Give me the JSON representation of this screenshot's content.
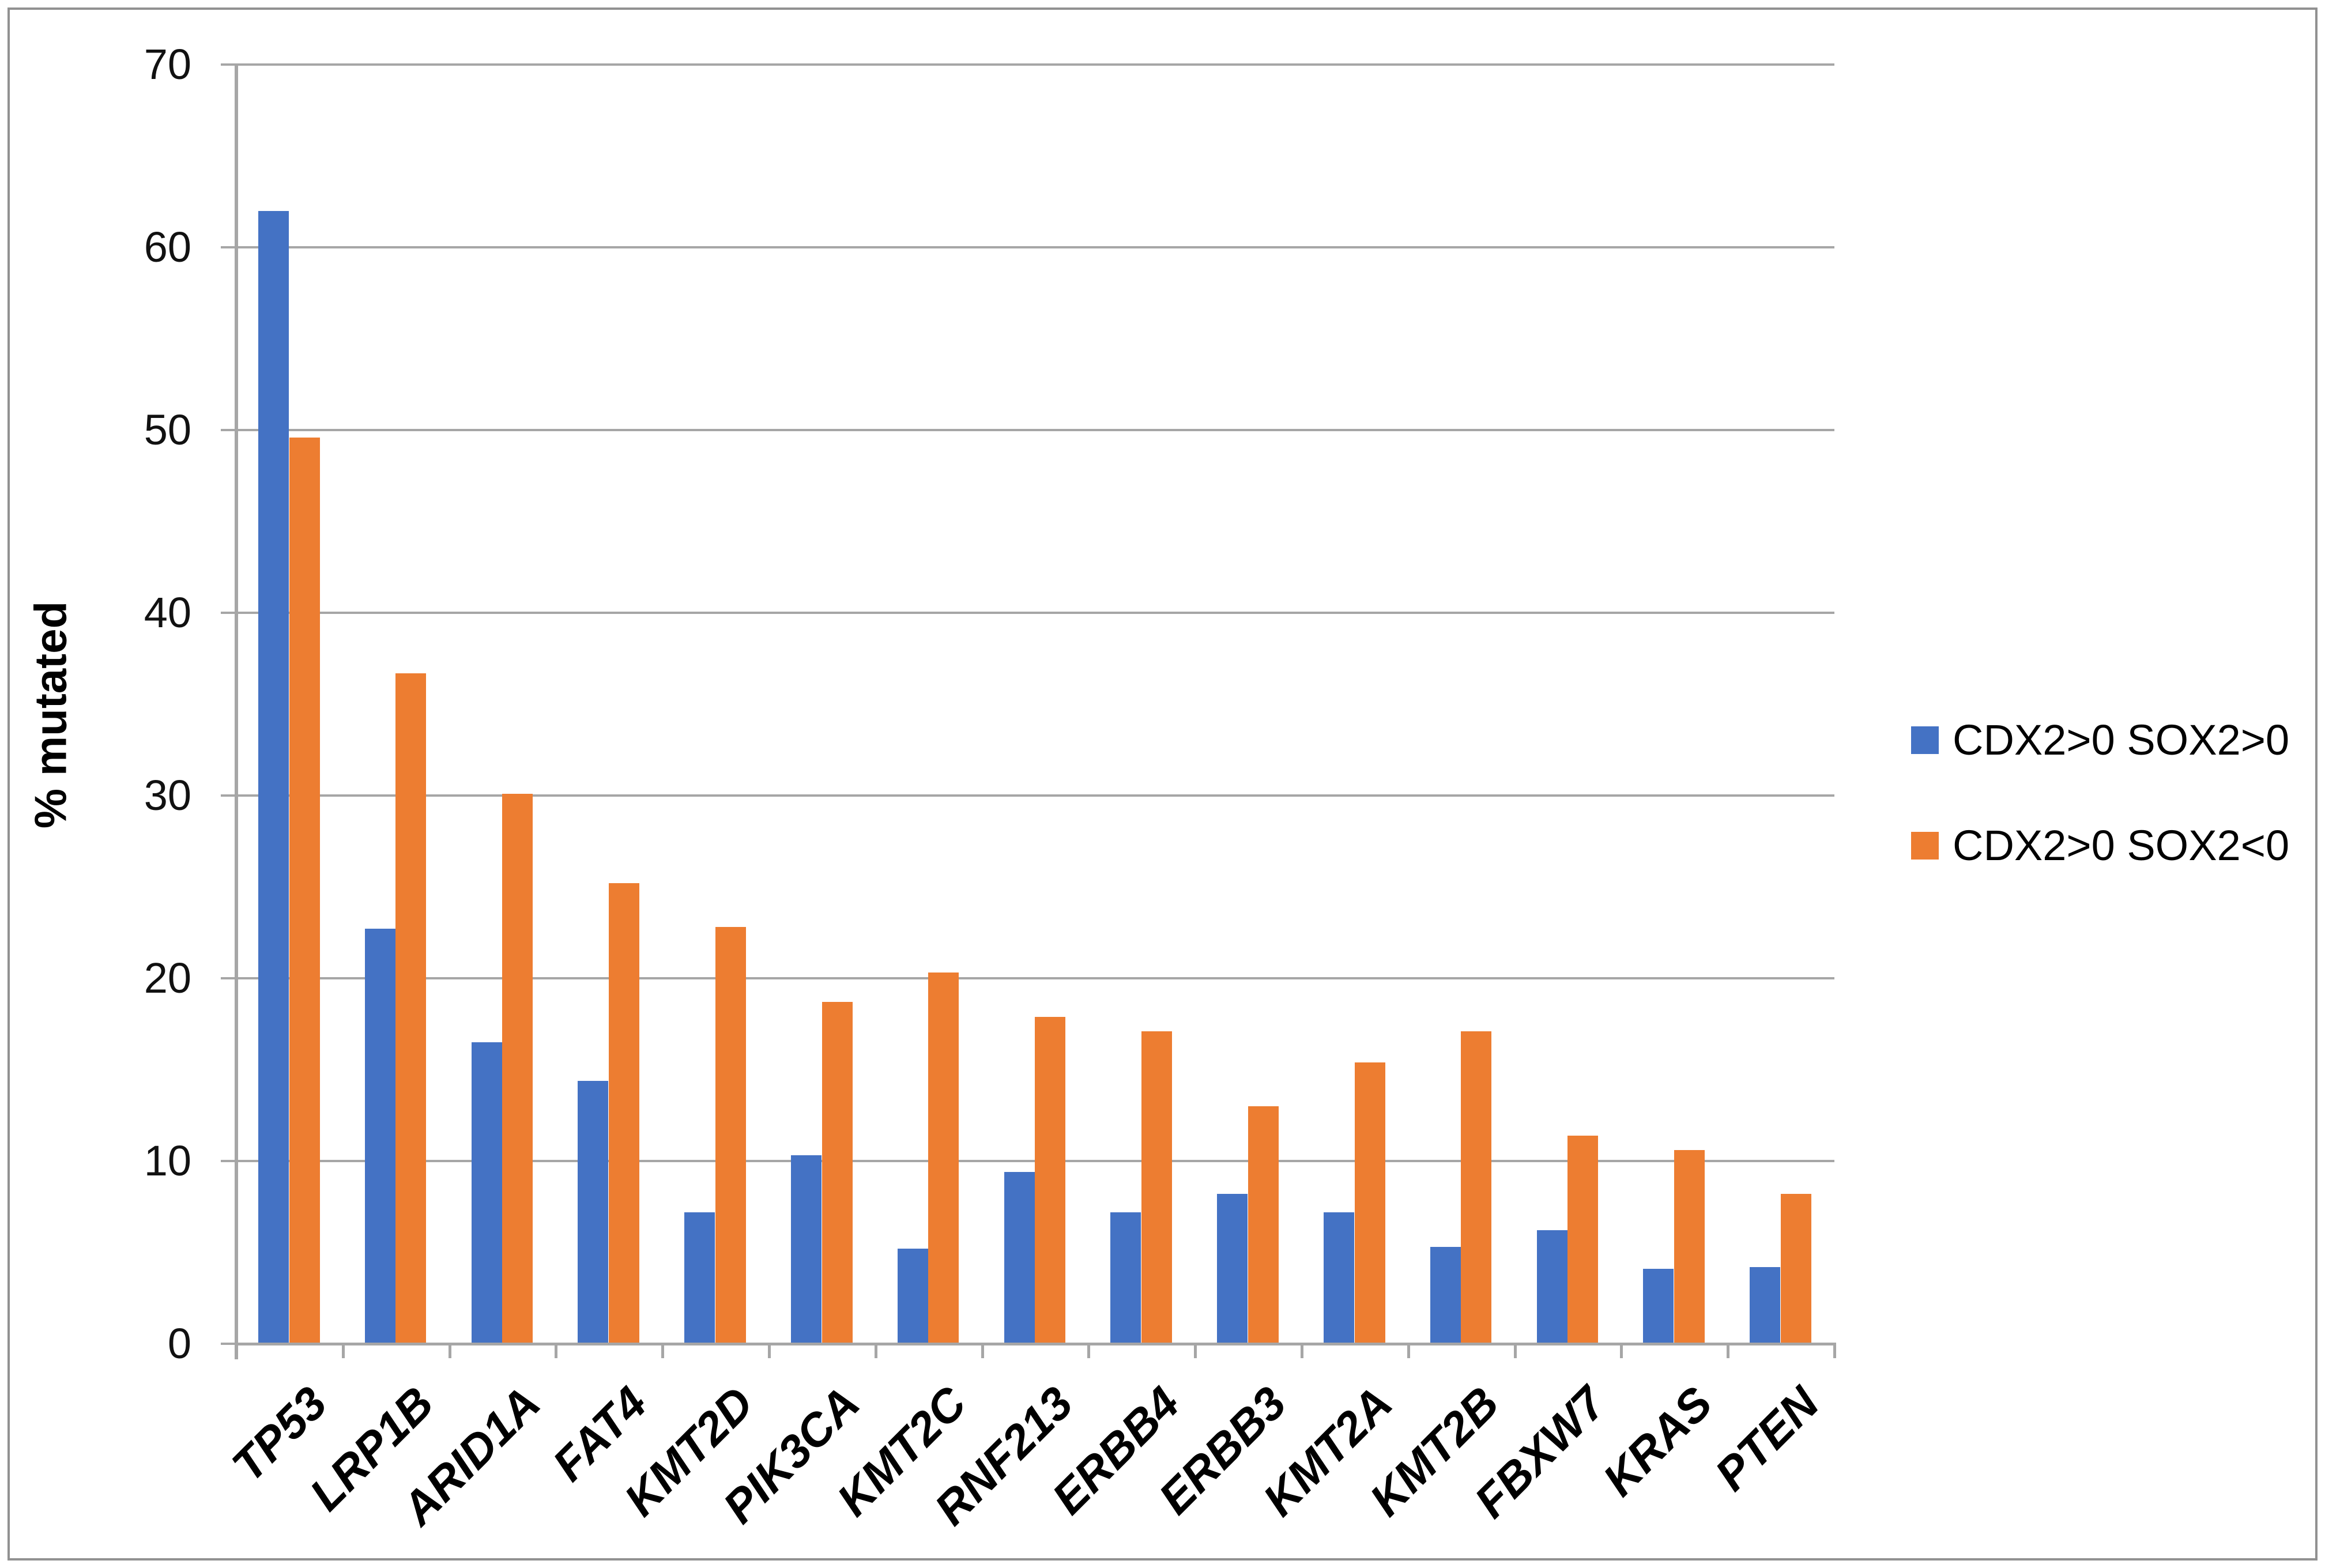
{
  "chart_data": {
    "type": "bar",
    "title": "",
    "xlabel": "",
    "ylabel": "% mutated",
    "ylim": [
      0,
      70
    ],
    "ytick_step": 10,
    "ytick_labels": [
      "0",
      "10",
      "20",
      "30",
      "40",
      "50",
      "60",
      "70"
    ],
    "grid": "horizontal",
    "legend_position": "right",
    "categories": [
      "TP53",
      "LRP1B",
      "ARID1A",
      "FAT4",
      "KMT2D",
      "PIK3CA",
      "KMT2C",
      "RNF213",
      "ERBB4",
      "ERBB3",
      "KMT2A",
      "KMT2B",
      "FBXW7",
      "KRAS",
      "PTEN"
    ],
    "series": [
      {
        "name": "CDX2>0 SOX2>0",
        "color": "#4472C4",
        "values": [
          62.0,
          22.7,
          16.5,
          14.4,
          7.2,
          10.3,
          5.2,
          9.4,
          7.2,
          8.2,
          7.2,
          5.3,
          6.2,
          4.1,
          4.2
        ]
      },
      {
        "name": "CDX2>0 SOX2<0",
        "color": "#ED7D31",
        "values": [
          49.6,
          36.7,
          30.1,
          25.2,
          22.8,
          18.7,
          20.3,
          17.9,
          17.1,
          13.0,
          15.4,
          17.1,
          11.4,
          10.6,
          8.2
        ]
      }
    ]
  },
  "colors": {
    "gridline": "#A6A6A6",
    "axis": "#A6A6A6",
    "border": "#919191",
    "bar_blue": "#4472C4",
    "bar_orange": "#ED7D31",
    "text": "#000000"
  }
}
